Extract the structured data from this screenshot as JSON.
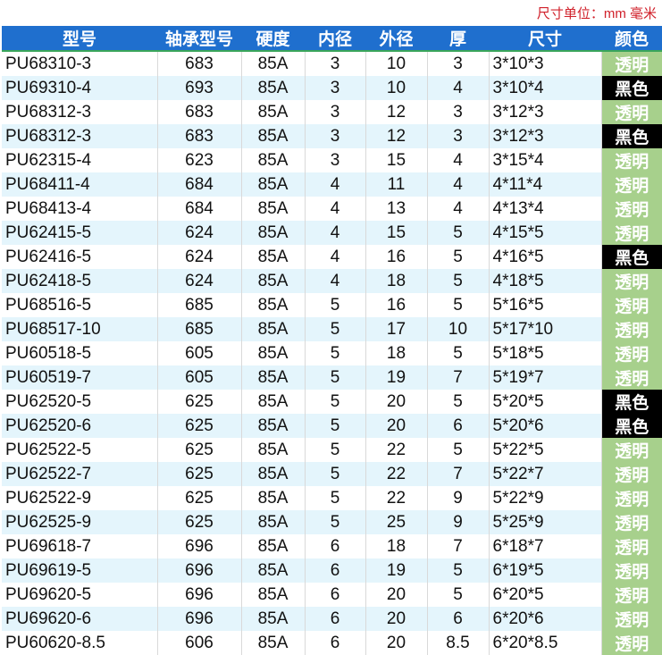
{
  "unit_note": "尺寸单位：mm 毫米",
  "headers": [
    "型号",
    "轴承型号",
    "硬度",
    "内径",
    "外径",
    "厚",
    "尺寸",
    "颜色"
  ],
  "colors": {
    "透明": "#a7d08c",
    "黑色": "#000000",
    "header": "#1f6fce"
  },
  "rows": [
    [
      "PU68310-3",
      "683",
      "85A",
      "3",
      "10",
      "3",
      "3*10*3",
      "透明"
    ],
    [
      "PU69310-4",
      "693",
      "85A",
      "3",
      "10",
      "4",
      "3*10*4",
      "黑色"
    ],
    [
      "PU68312-3",
      "683",
      "85A",
      "3",
      "12",
      "3",
      "3*12*3",
      "透明"
    ],
    [
      "PU68312-3",
      "683",
      "85A",
      "3",
      "12",
      "3",
      "3*12*3",
      "黑色"
    ],
    [
      "PU62315-4",
      "623",
      "85A",
      "3",
      "15",
      "4",
      "3*15*4",
      "透明"
    ],
    [
      "PU68411-4",
      "684",
      "85A",
      "4",
      "11",
      "4",
      "4*11*4",
      "透明"
    ],
    [
      "PU68413-4",
      "684",
      "85A",
      "4",
      "13",
      "4",
      "4*13*4",
      "透明"
    ],
    [
      "PU62415-5",
      "624",
      "85A",
      "4",
      "15",
      "5",
      "4*15*5",
      "透明"
    ],
    [
      "PU62416-5",
      "624",
      "85A",
      "4",
      "16",
      "5",
      "4*16*5",
      "黑色"
    ],
    [
      "PU62418-5",
      "624",
      "85A",
      "4",
      "18",
      "5",
      "4*18*5",
      "透明"
    ],
    [
      "PU68516-5",
      "685",
      "85A",
      "5",
      "16",
      "5",
      "5*16*5",
      "透明"
    ],
    [
      "PU68517-10",
      "685",
      "85A",
      "5",
      "17",
      "10",
      "5*17*10",
      "透明"
    ],
    [
      "PU60518-5",
      "605",
      "85A",
      "5",
      "18",
      "5",
      "5*18*5",
      "透明"
    ],
    [
      "PU60519-7",
      "605",
      "85A",
      "5",
      "19",
      "7",
      "5*19*7",
      "透明"
    ],
    [
      "PU62520-5",
      "625",
      "85A",
      "5",
      "20",
      "5",
      "5*20*5",
      "黑色"
    ],
    [
      "PU62520-6",
      "625",
      "85A",
      "5",
      "20",
      "6",
      "5*20*6",
      "黑色"
    ],
    [
      "PU62522-5",
      "625",
      "85A",
      "5",
      "22",
      "5",
      "5*22*5",
      "透明"
    ],
    [
      "PU62522-7",
      "625",
      "85A",
      "5",
      "22",
      "7",
      "5*22*7",
      "透明"
    ],
    [
      "PU62522-9",
      "625",
      "85A",
      "5",
      "22",
      "9",
      "5*22*9",
      "透明"
    ],
    [
      "PU62525-9",
      "625",
      "85A",
      "5",
      "25",
      "9",
      "5*25*9",
      "透明"
    ],
    [
      "PU69618-7",
      "696",
      "85A",
      "6",
      "18",
      "7",
      "6*18*7",
      "透明"
    ],
    [
      "PU69619-5",
      "696",
      "85A",
      "6",
      "19",
      "5",
      "6*19*5",
      "透明"
    ],
    [
      "PU69620-5",
      "696",
      "85A",
      "6",
      "20",
      "5",
      "6*20*5",
      "透明"
    ],
    [
      "PU69620-6",
      "696",
      "85A",
      "6",
      "20",
      "6",
      "6*20*6",
      "透明"
    ],
    [
      "PU60620-8.5",
      "606",
      "85A",
      "6",
      "20",
      "8.5",
      "6*20*8.5",
      "透明"
    ]
  ]
}
